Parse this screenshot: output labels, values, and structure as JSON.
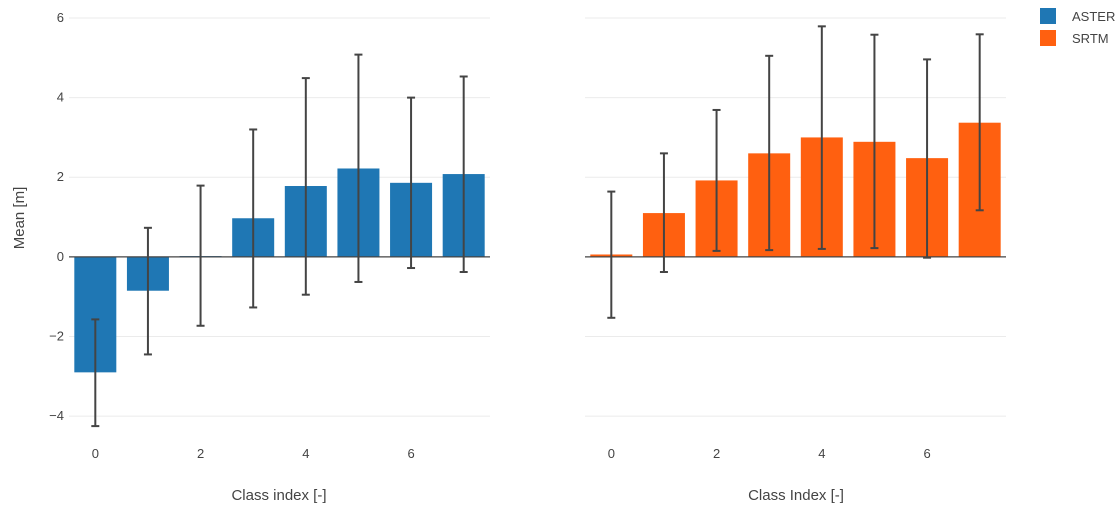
{
  "chart_data": [
    {
      "type": "bar",
      "panel": "left",
      "xlabel": "Class index [-]",
      "ylabel": "Mean [m]",
      "x": [
        0,
        1,
        2,
        3,
        4,
        5,
        6,
        7
      ],
      "xticks": [
        0,
        2,
        4,
        6
      ],
      "yticks": [
        -4,
        -2,
        0,
        2,
        4,
        6
      ],
      "ylim": [
        -4.8,
        6.1
      ],
      "xlim": [
        -0.5,
        7.5
      ],
      "grid": true,
      "series": [
        {
          "name": "ASTER",
          "color": "#1f77b4",
          "values": [
            -2.9,
            -0.85,
            0.02,
            0.97,
            1.78,
            2.22,
            1.86,
            2.08
          ],
          "error_low": [
            -4.25,
            -2.45,
            -1.73,
            -1.27,
            -0.95,
            -0.63,
            -0.28,
            -0.38
          ],
          "error_high": [
            -1.57,
            0.73,
            1.79,
            3.2,
            4.49,
            5.08,
            4.0,
            4.53
          ]
        }
      ]
    },
    {
      "type": "bar",
      "panel": "right",
      "xlabel": "Class Index [-]",
      "ylabel": "",
      "x": [
        0,
        1,
        2,
        3,
        4,
        5,
        6,
        7
      ],
      "xticks": [
        0,
        2,
        4,
        6
      ],
      "yticks": [
        -4,
        -2,
        0,
        2,
        4,
        6
      ],
      "ylim": [
        -4.8,
        6.1
      ],
      "xlim": [
        -0.5,
        7.5
      ],
      "grid": true,
      "series": [
        {
          "name": "SRTM",
          "color": "#ff6010",
          "values": [
            0.06,
            1.1,
            1.92,
            2.6,
            3.0,
            2.89,
            2.48,
            3.37
          ],
          "error_low": [
            -1.53,
            -0.38,
            0.15,
            0.17,
            0.2,
            0.22,
            -0.02,
            1.17
          ],
          "error_high": [
            1.64,
            2.6,
            3.69,
            5.05,
            5.79,
            5.58,
            4.96,
            5.59
          ]
        }
      ]
    }
  ],
  "legend": {
    "placement": "top-right",
    "items": [
      {
        "label": "ASTER",
        "color": "#1f77b4"
      },
      {
        "label": "SRTM",
        "color": "#ff6010"
      }
    ]
  }
}
